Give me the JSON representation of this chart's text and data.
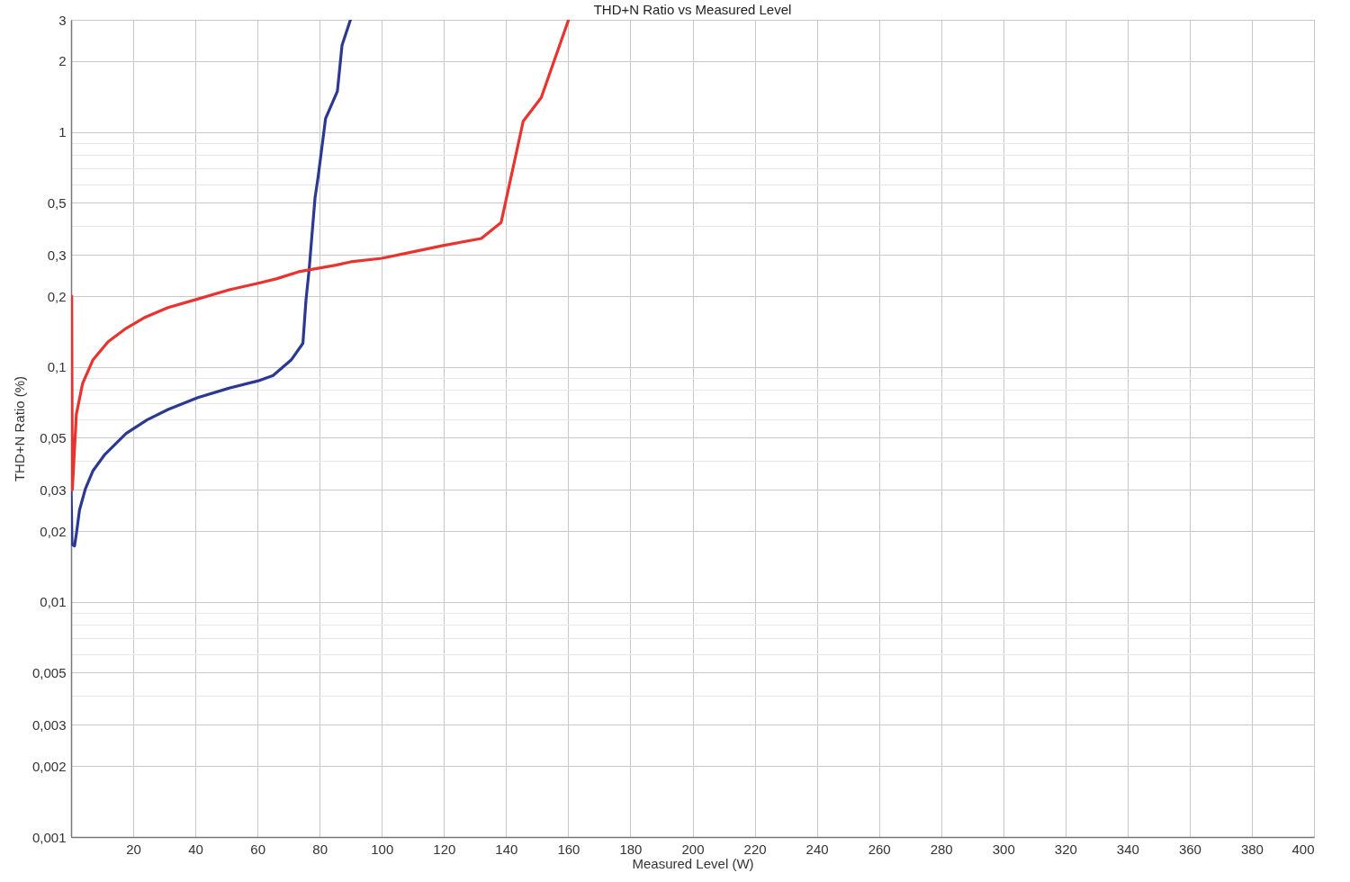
{
  "chart_data": {
    "type": "line",
    "title": "THD+N Ratio vs Measured Level",
    "xlabel": "Measured Level (W)",
    "ylabel": "THD+N Ratio (%)",
    "xlim": [
      0,
      400
    ],
    "xticks": [
      20,
      40,
      60,
      80,
      100,
      120,
      140,
      160,
      180,
      200,
      220,
      240,
      260,
      280,
      300,
      320,
      340,
      360,
      380,
      400
    ],
    "ylim": [
      0.001,
      3
    ],
    "yticks": [
      {
        "value": 0.001,
        "label": "0,001"
      },
      {
        "value": 0.002,
        "label": "0,002"
      },
      {
        "value": 0.003,
        "label": "0,003"
      },
      {
        "value": 0.004,
        "label": null
      },
      {
        "value": 0.005,
        "label": "0,005"
      },
      {
        "value": 0.006,
        "label": null
      },
      {
        "value": 0.007,
        "label": null
      },
      {
        "value": 0.008,
        "label": null
      },
      {
        "value": 0.009,
        "label": null
      },
      {
        "value": 0.01,
        "label": "0,01"
      },
      {
        "value": 0.02,
        "label": "0,02"
      },
      {
        "value": 0.03,
        "label": "0,03"
      },
      {
        "value": 0.04,
        "label": null
      },
      {
        "value": 0.05,
        "label": "0,05"
      },
      {
        "value": 0.06,
        "label": null
      },
      {
        "value": 0.07,
        "label": null
      },
      {
        "value": 0.08,
        "label": null
      },
      {
        "value": 0.09,
        "label": null
      },
      {
        "value": 0.1,
        "label": "0,1"
      },
      {
        "value": 0.2,
        "label": "0,2"
      },
      {
        "value": 0.3,
        "label": "0,3"
      },
      {
        "value": 0.4,
        "label": null
      },
      {
        "value": 0.5,
        "label": "0,5"
      },
      {
        "value": 0.6,
        "label": null
      },
      {
        "value": 0.7,
        "label": null
      },
      {
        "value": 0.8,
        "label": null
      },
      {
        "value": 0.9,
        "label": null
      },
      1,
      2,
      3
    ],
    "log": "y",
    "grid": true,
    "line_style": "solid",
    "series": [
      {
        "color": "#2b3990",
        "x": [
          0,
          0.3,
          1.1,
          1.7,
          2.7,
          4.6,
          7,
          10.9,
          17.7,
          24.4,
          31.2,
          40.8,
          50.5,
          60.2,
          65,
          70.8,
          74.6,
          75.6,
          76.6,
          78.5,
          79.5,
          81.9,
          85.7,
          87.2,
          89.9
        ],
        "values": [
          0.03,
          0.0176,
          0.0173,
          0.0195,
          0.0246,
          0.0303,
          0.0361,
          0.0425,
          0.0521,
          0.0595,
          0.0659,
          0.0741,
          0.081,
          0.0873,
          0.092,
          0.107,
          0.126,
          0.193,
          0.259,
          0.524,
          0.644,
          1.14,
          1.49,
          2.34,
          3
        ]
      },
      {
        "color": "#e8332f",
        "x": [
          0.2,
          0.4,
          1.7,
          3.7,
          7,
          11.9,
          17.7,
          23.5,
          31.2,
          39.9,
          51.5,
          60.2,
          66,
          73.7,
          85.2,
          90,
          100,
          107.5,
          120,
          132,
          138.4,
          145.5,
          151.3,
          160.1
        ],
        "values": [
          0.2,
          0.03,
          0.063,
          0.085,
          0.107,
          0.128,
          0.146,
          0.162,
          0.179,
          0.193,
          0.214,
          0.227,
          0.237,
          0.255,
          0.271,
          0.28,
          0.29,
          0.304,
          0.329,
          0.352,
          0.412,
          1.11,
          1.4,
          3
        ]
      }
    ]
  }
}
